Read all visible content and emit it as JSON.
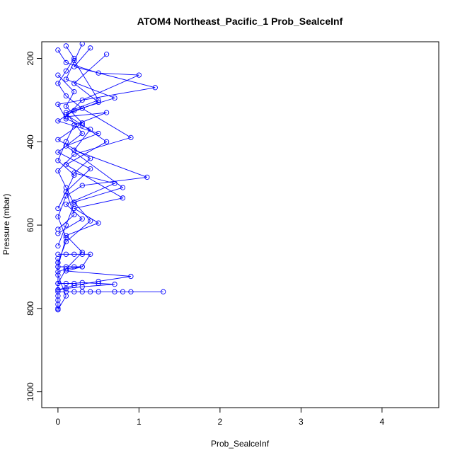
{
  "chart_data": {
    "type": "line",
    "title": "ATOM4 Northeast_Pacific_1 Prob_SealceInf",
    "xlabel": "Prob_SealceInf",
    "ylabel": "Pressure (mbar)",
    "xlim": [
      -0.2,
      4.7
    ],
    "ylim": [
      1038,
      160
    ],
    "y_inverted": true,
    "xticks": [
      0,
      1,
      2,
      3,
      4
    ],
    "yticks": [
      200,
      400,
      600,
      800,
      1000
    ],
    "grid": false,
    "legend": "none",
    "series_color": "#0000ff",
    "series": [
      {
        "x": [
          0.1,
          0.2,
          0.1,
          0.0,
          0.1,
          0.3,
          0.9,
          0.2,
          0.0,
          0.1,
          0.2,
          0.1,
          0.0
        ],
        "y": [
          170,
          200,
          230,
          260,
          290,
          320,
          390,
          430,
          470,
          510,
          550,
          600,
          650
        ]
      },
      {
        "x": [
          0.0,
          0.1,
          0.5,
          1.0,
          0.3,
          0.1,
          0.6,
          0.2,
          0.1,
          0.0,
          0.2,
          0.1,
          0.0
        ],
        "y": [
          180,
          210,
          235,
          240,
          300,
          340,
          330,
          360,
          400,
          445,
          480,
          520,
          560
        ]
      },
      {
        "x": [
          0.4,
          0.2,
          1.2,
          0.0,
          0.1,
          0.4,
          0.2,
          1.1,
          0.3,
          0.1,
          0.0,
          0.1,
          0.0
        ],
        "y": [
          175,
          220,
          270,
          310,
          345,
          370,
          420,
          485,
          505,
          530,
          580,
          630,
          700
        ]
      },
      {
        "x": [
          0.3,
          0.1,
          0.7,
          0.2,
          0.0,
          0.5,
          0.1,
          0.8,
          0.2,
          0.4,
          0.1,
          0.0
        ],
        "y": [
          165,
          250,
          295,
          325,
          350,
          380,
          410,
          510,
          545,
          590,
          640,
          690
        ]
      },
      {
        "x": [
          0.6,
          0.2,
          0.5,
          0.1,
          0.3,
          0.6,
          0.1,
          0.8,
          0.2,
          0.5,
          0.1,
          0.3,
          0.1,
          0.0
        ],
        "y": [
          190,
          260,
          305,
          335,
          360,
          400,
          455,
          535,
          560,
          595,
          625,
          665,
          705,
          740
        ]
      },
      {
        "x": [
          0.0,
          0.2,
          0.1,
          0.3,
          0.0,
          0.4,
          0.2,
          0.7,
          0.1,
          0.3,
          0.0
        ],
        "y": [
          240,
          280,
          315,
          355,
          395,
          440,
          475,
          500,
          550,
          585,
          620
        ]
      },
      {
        "x": [
          0.2,
          0.5,
          0.1,
          0.3,
          0.0,
          0.4,
          0.1,
          0.2,
          0.0
        ],
        "y": [
          205,
          300,
          330,
          380,
          425,
          465,
          520,
          575,
          610
        ]
      },
      {
        "x": [
          0.0,
          0.1,
          0.2,
          0.3,
          0.4,
          0.3,
          0.1,
          0.9,
          0.5,
          0.2,
          0.0
        ],
        "y": [
          670,
          670,
          670,
          670,
          670,
          700,
          710,
          723,
          735,
          745,
          755
        ]
      },
      {
        "x": [
          0.0,
          0.1,
          0.2,
          0.3,
          0.4,
          0.5,
          0.7,
          0.8,
          0.9,
          1.3
        ],
        "y": [
          760,
          760,
          760,
          760,
          760,
          760,
          760,
          760,
          760,
          760
        ]
      },
      {
        "x": [
          0.0,
          0.1,
          0.2,
          0.3,
          0.5,
          0.7,
          0.3,
          0.1,
          0.0
        ],
        "y": [
          740,
          740,
          740,
          738,
          740,
          742,
          748,
          752,
          756
        ]
      },
      {
        "x": [
          0.0,
          0.1,
          0.2,
          0.3,
          0.1,
          0.0
        ],
        "y": [
          700,
          700,
          700,
          700,
          705,
          712
        ]
      },
      {
        "x": [
          0.0,
          0.0,
          0.0,
          0.0,
          0.0,
          0.0,
          0.0,
          0.0,
          0.1,
          0.0
        ],
        "y": [
          770,
          780,
          790,
          800,
          803,
          680,
          690,
          720,
          770,
          803
        ]
      }
    ]
  }
}
